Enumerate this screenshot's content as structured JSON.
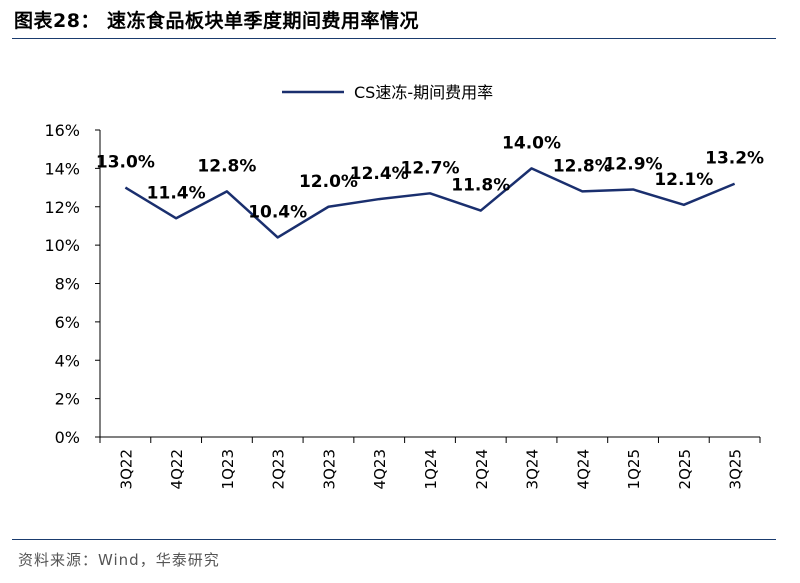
{
  "figure": {
    "title": "图表28：  速冻食品板块单季度期间费用率情况",
    "source": "资料来源：Wind，华泰研究"
  },
  "chart_data": {
    "type": "line",
    "categories": [
      "3Q22",
      "4Q22",
      "1Q23",
      "2Q23",
      "3Q23",
      "4Q23",
      "1Q24",
      "2Q24",
      "3Q24",
      "4Q24",
      "1Q25",
      "2Q25",
      "3Q25"
    ],
    "series": [
      {
        "name": "CS速冻-期间费用率",
        "values": [
          13.0,
          11.4,
          12.8,
          10.4,
          12.0,
          12.4,
          12.7,
          11.8,
          14.0,
          12.8,
          12.9,
          12.1,
          13.2
        ],
        "labels": [
          "13.0%",
          "11.4%",
          "12.8%",
          "10.4%",
          "12.0%",
          "12.4%",
          "12.7%",
          "11.8%",
          "14.0%",
          "12.8%",
          "12.9%",
          "12.1%",
          "13.2%"
        ],
        "color": "#1a2f6e"
      }
    ],
    "y_ticks": [
      "0%",
      "2%",
      "4%",
      "6%",
      "8%",
      "10%",
      "12%",
      "14%",
      "16%"
    ],
    "ylim": [
      0,
      16
    ],
    "grid": false,
    "legend_position": "top-center"
  }
}
